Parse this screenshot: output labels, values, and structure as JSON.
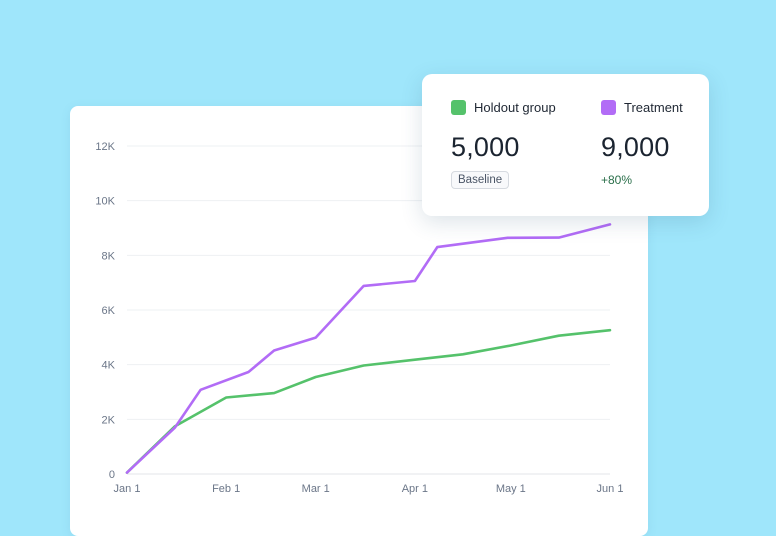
{
  "colors": {
    "background": "#9fe6fb",
    "holdout": "#55c26b",
    "treatment": "#b26cf6"
  },
  "legend": {
    "holdout": {
      "label": "Holdout group",
      "value": "5,000",
      "badge": "Baseline"
    },
    "treatment": {
      "label": "Treatment",
      "value": "9,000",
      "delta": "+80%"
    }
  },
  "chart_data": {
    "type": "line",
    "x": [
      "Jan 1",
      "Jan 16",
      "Jan 31",
      "Feb 8",
      "Feb 23",
      "Mar 1",
      "Mar 10",
      "Mar 25",
      "Apr 1",
      "Apr 16",
      "Apr 30",
      "May 1",
      "May 14",
      "May 29",
      "Jun 1"
    ],
    "x_ticks": [
      "Jan 1",
      "Feb 1",
      "Mar 1",
      "Apr 1",
      "May 1",
      "Jun 1"
    ],
    "ylim": [
      0,
      12000
    ],
    "y_ticks": [
      "0",
      "2K",
      "4K",
      "6K",
      "8K",
      "10K",
      "12K"
    ],
    "grid": true,
    "series": [
      {
        "name": "Holdout group",
        "color": "#55c26b",
        "points": [
          [
            "Jan 1",
            50
          ],
          [
            "Jan 16",
            1750
          ],
          [
            "Feb 1",
            2800
          ],
          [
            "Feb 16",
            2960
          ],
          [
            "Mar 1",
            3550
          ],
          [
            "Mar 16",
            3970
          ],
          [
            "Apr 1",
            4180
          ],
          [
            "Apr 16",
            4380
          ],
          [
            "May 1",
            4700
          ],
          [
            "May 16",
            5060
          ],
          [
            "Jun 1",
            5260
          ]
        ]
      },
      {
        "name": "Treatment",
        "color": "#b26cf6",
        "points": [
          [
            "Jan 1",
            50
          ],
          [
            "Jan 16",
            1700
          ],
          [
            "Jan 24",
            3080
          ],
          [
            "Feb 8",
            3730
          ],
          [
            "Feb 16",
            4520
          ],
          [
            "Mar 1",
            4990
          ],
          [
            "Mar 16",
            6880
          ],
          [
            "Apr 1",
            7060
          ],
          [
            "Apr 8",
            8300
          ],
          [
            "Apr 30",
            8640
          ],
          [
            "May 16",
            8650
          ],
          [
            "Jun 1",
            9130
          ]
        ]
      }
    ]
  }
}
